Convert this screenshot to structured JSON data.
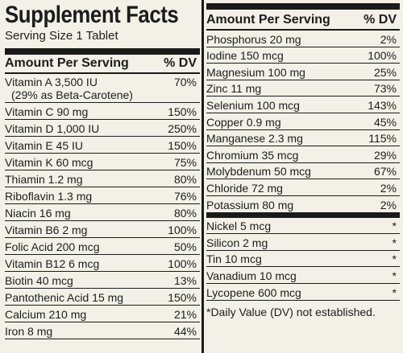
{
  "title": "Supplement Facts",
  "serving": "Serving Size 1 Tablet",
  "header": {
    "amount": "Amount Per Serving",
    "dv": "% DV"
  },
  "left_rows": [
    {
      "name": "Vitamin A 3,500 IU",
      "sub": "(29% as Beta-Carotene)",
      "dv": "70%"
    },
    {
      "name": "Vitamin C 90 mg",
      "dv": "150%"
    },
    {
      "name": "Vitamin D 1,000 IU",
      "dv": "250%"
    },
    {
      "name": "Vitamin E 45 IU",
      "dv": "150%"
    },
    {
      "name": "Vitamin K 60 mcg",
      "dv": "75%"
    },
    {
      "name": "Thiamin 1.2 mg",
      "dv": "80%"
    },
    {
      "name": "Riboflavin 1.3 mg",
      "dv": "76%"
    },
    {
      "name": "Niacin 16 mg",
      "dv": "80%"
    },
    {
      "name": "Vitamin B6 2 mg",
      "dv": "100%"
    },
    {
      "name": "Folic Acid 200 mcg",
      "dv": "50%"
    },
    {
      "name": "Vitamin B12 6 mcg",
      "dv": "100%"
    },
    {
      "name": "Biotin 40 mcg",
      "dv": "13%"
    },
    {
      "name": "Pantothenic Acid 15 mg",
      "dv": "150%"
    },
    {
      "name": "Calcium 210 mg",
      "dv": "21%"
    },
    {
      "name": "Iron 8 mg",
      "dv": "44%"
    }
  ],
  "right_rows": [
    {
      "name": "Phosphorus 20 mg",
      "dv": "2%"
    },
    {
      "name": "Iodine 150 mcg",
      "dv": "100%"
    },
    {
      "name": "Magnesium 100 mg",
      "dv": "25%"
    },
    {
      "name": "Zinc 11 mg",
      "dv": "73%"
    },
    {
      "name": "Selenium 100 mcg",
      "dv": "143%"
    },
    {
      "name": "Copper 0.9 mg",
      "dv": "45%"
    },
    {
      "name": "Manganese 2.3 mg",
      "dv": "115%"
    },
    {
      "name": "Chromium 35 mcg",
      "dv": "29%"
    },
    {
      "name": "Molybdenum 50 mcg",
      "dv": "67%"
    },
    {
      "name": "Chloride 72 mg",
      "dv": "2%"
    },
    {
      "name": "Potassium 80 mg",
      "dv": "2%"
    }
  ],
  "right_rows_nodv": [
    {
      "name": "Nickel 5 mcg",
      "dv": "*"
    },
    {
      "name": "Silicon 2 mg",
      "dv": "*"
    },
    {
      "name": "Tin 10 mcg",
      "dv": "*"
    },
    {
      "name": "Vanadium 10 mcg",
      "dv": "*"
    },
    {
      "name": "Lycopene 600 mcg",
      "dv": "*"
    }
  ],
  "footnote": "*Daily Value (DV) not established."
}
